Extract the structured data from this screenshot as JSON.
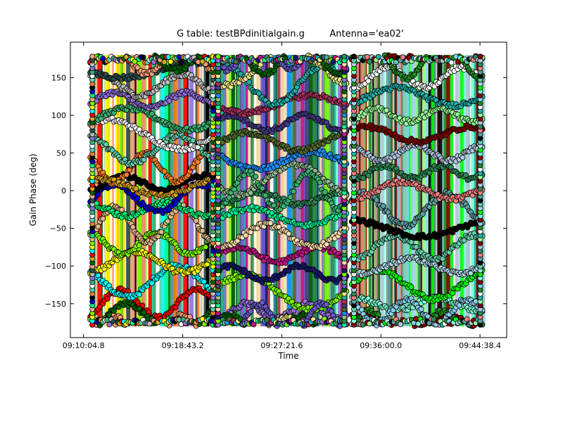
{
  "chart_data": {
    "type": "scatter",
    "title_left": "G table: testBPdinitialgain.g",
    "title_right": "Antenna='ea02'",
    "xlabel": "Time",
    "ylabel": "Gain Phase (deg)",
    "x_tick_labels": [
      "09:10:04.8",
      "09:18:43.2",
      "09:27:21.6",
      "09:36:00.0",
      "09:44:38.4"
    ],
    "x_ticks_seconds": [
      32404.8,
      32923.2,
      33441.6,
      33960.0,
      34478.4
    ],
    "xlim_seconds": [
      32336.0,
      34618.0
    ],
    "y_ticks": [
      -150,
      -100,
      -50,
      0,
      50,
      100,
      150
    ],
    "ylim": [
      -195,
      197
    ],
    "grid": false,
    "legend": "none",
    "scans": [
      {
        "t_start": 32440,
        "t_end": 33093,
        "series_colors": [
          "#ff0000",
          "#00ffff",
          "#ffff00",
          "#7cfc00",
          "#deb887",
          "#00ff7f",
          "#0000cd",
          "#000000",
          "#ff7f24",
          "#66cdaa",
          "#ffffff",
          "#3cb371",
          "#9370db",
          "#bebebe",
          "#2f4f4f",
          "#ffa07a",
          "#006400",
          "#daa520"
        ],
        "series_levels": [
          -150,
          -120,
          -95,
          -70,
          -45,
          -25,
          -10,
          10,
          30,
          55,
          75,
          95,
          120,
          140,
          160,
          175,
          -175,
          5
        ]
      },
      {
        "t_start": 33098,
        "t_end": 33780,
        "series_colors": [
          "#9370db",
          "#7cfc00",
          "#191970",
          "#c71585",
          "#ffdead",
          "#00fa9a",
          "#2e8b57",
          "#8fbc8f",
          "#1e90ff",
          "#556b2f",
          "#483d8b",
          "#b03060",
          "#20b2aa",
          "#f0e68c",
          "#006400",
          "#6a5acd",
          "#3cb371"
        ],
        "series_levels": [
          -160,
          -135,
          -110,
          -85,
          -60,
          -35,
          -10,
          15,
          40,
          65,
          90,
          115,
          140,
          165,
          175,
          -175,
          0
        ]
      },
      {
        "t_start": 33808,
        "t_end": 34491,
        "series_colors": [
          "#8b0000",
          "#7fffd4",
          "#00ff00",
          "#add8e6",
          "#66cdaa",
          "#000000",
          "#5f9ea0",
          "#f08080",
          "#2e8b57",
          "#b0c4de",
          "#800000",
          "#98fb98",
          "#20b2aa",
          "#ffffff",
          "#228b22",
          "#87ceeb"
        ],
        "series_levels": [
          -175,
          -150,
          -125,
          -100,
          -75,
          -50,
          -25,
          0,
          25,
          50,
          75,
          100,
          125,
          150,
          175,
          -160
        ]
      }
    ]
  }
}
